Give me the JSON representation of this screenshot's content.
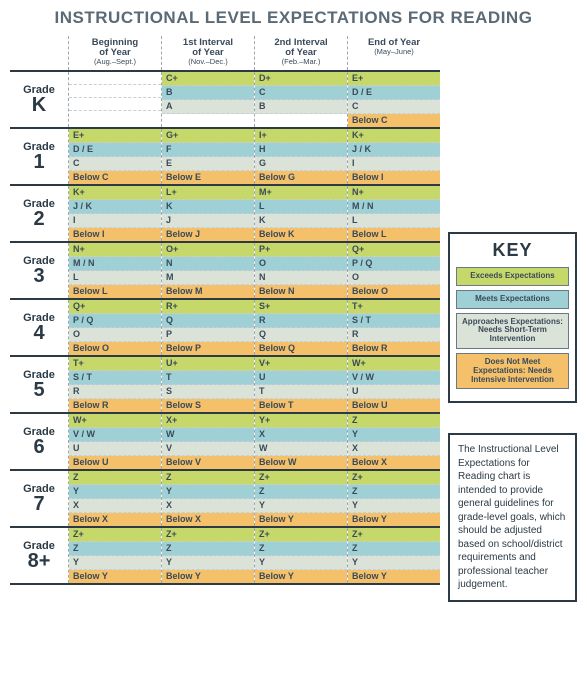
{
  "title": "INSTRUCTIONAL LEVEL EXPECTATIONS FOR READING",
  "colors": {
    "exceeds": "#c7d86a",
    "meets": "#9ed0d6",
    "approaches": "#dbe3d8",
    "notmeet": "#f4c06a",
    "blank": "#ffffff",
    "border": "#2b3a44",
    "dash": "#9aa8b1"
  },
  "intervals": [
    {
      "line1": "Beginning",
      "line2": "of Year",
      "sub": "(Aug.–Sept.)"
    },
    {
      "line1": "1st Interval",
      "line2": "of Year",
      "sub": "(Nov.–Dec.)"
    },
    {
      "line1": "2nd Interval",
      "line2": "of Year",
      "sub": "(Feb.–Mar.)"
    },
    {
      "line1": "End of Year",
      "line2": "",
      "sub": "(May–June)"
    }
  ],
  "levels": [
    "exceeds",
    "meets",
    "approaches",
    "notmeet"
  ],
  "level_css": {
    "exceeds": "c-exceeds",
    "meets": "c-meets",
    "approaches": "c-approach",
    "notmeet": "c-below",
    "blank": "c-blank"
  },
  "grades": [
    {
      "label1": "Grade",
      "label2": "K",
      "cells": [
        [
          {
            "t": "",
            "lvl": "blank"
          },
          {
            "t": "",
            "lvl": "blank"
          },
          {
            "t": "",
            "lvl": "blank"
          },
          {
            "t": "",
            "lvl": "blank"
          }
        ],
        [
          {
            "t": "C+",
            "lvl": "exceeds"
          },
          {
            "t": "B",
            "lvl": "meets"
          },
          {
            "t": "A",
            "lvl": "approaches"
          },
          {
            "t": "",
            "lvl": "blank"
          }
        ],
        [
          {
            "t": "D+",
            "lvl": "exceeds"
          },
          {
            "t": "C",
            "lvl": "meets"
          },
          {
            "t": "B",
            "lvl": "approaches"
          },
          {
            "t": "",
            "lvl": "blank"
          }
        ],
        [
          {
            "t": "E+",
            "lvl": "exceeds"
          },
          {
            "t": "D / E",
            "lvl": "meets"
          },
          {
            "t": "C",
            "lvl": "approaches"
          },
          {
            "t": "Below C",
            "lvl": "notmeet"
          }
        ]
      ]
    },
    {
      "label1": "Grade",
      "label2": "1",
      "cells": [
        [
          {
            "t": "E+",
            "lvl": "exceeds"
          },
          {
            "t": "D / E",
            "lvl": "meets"
          },
          {
            "t": "C",
            "lvl": "approaches"
          },
          {
            "t": "Below C",
            "lvl": "notmeet"
          }
        ],
        [
          {
            "t": "G+",
            "lvl": "exceeds"
          },
          {
            "t": "F",
            "lvl": "meets"
          },
          {
            "t": "E",
            "lvl": "approaches"
          },
          {
            "t": "Below E",
            "lvl": "notmeet"
          }
        ],
        [
          {
            "t": "I+",
            "lvl": "exceeds"
          },
          {
            "t": "H",
            "lvl": "meets"
          },
          {
            "t": "G",
            "lvl": "approaches"
          },
          {
            "t": "Below G",
            "lvl": "notmeet"
          }
        ],
        [
          {
            "t": "K+",
            "lvl": "exceeds"
          },
          {
            "t": "J / K",
            "lvl": "meets"
          },
          {
            "t": "I",
            "lvl": "approaches"
          },
          {
            "t": "Below I",
            "lvl": "notmeet"
          }
        ]
      ]
    },
    {
      "label1": "Grade",
      "label2": "2",
      "cells": [
        [
          {
            "t": "K+",
            "lvl": "exceeds"
          },
          {
            "t": "J / K",
            "lvl": "meets"
          },
          {
            "t": "I",
            "lvl": "approaches"
          },
          {
            "t": "Below I",
            "lvl": "notmeet"
          }
        ],
        [
          {
            "t": "L+",
            "lvl": "exceeds"
          },
          {
            "t": "K",
            "lvl": "meets"
          },
          {
            "t": "J",
            "lvl": "approaches"
          },
          {
            "t": "Below J",
            "lvl": "notmeet"
          }
        ],
        [
          {
            "t": "M+",
            "lvl": "exceeds"
          },
          {
            "t": "L",
            "lvl": "meets"
          },
          {
            "t": "K",
            "lvl": "approaches"
          },
          {
            "t": "Below K",
            "lvl": "notmeet"
          }
        ],
        [
          {
            "t": "N+",
            "lvl": "exceeds"
          },
          {
            "t": "M / N",
            "lvl": "meets"
          },
          {
            "t": "L",
            "lvl": "approaches"
          },
          {
            "t": "Below L",
            "lvl": "notmeet"
          }
        ]
      ]
    },
    {
      "label1": "Grade",
      "label2": "3",
      "cells": [
        [
          {
            "t": "N+",
            "lvl": "exceeds"
          },
          {
            "t": "M / N",
            "lvl": "meets"
          },
          {
            "t": "L",
            "lvl": "approaches"
          },
          {
            "t": "Below L",
            "lvl": "notmeet"
          }
        ],
        [
          {
            "t": "O+",
            "lvl": "exceeds"
          },
          {
            "t": "N",
            "lvl": "meets"
          },
          {
            "t": "M",
            "lvl": "approaches"
          },
          {
            "t": "Below M",
            "lvl": "notmeet"
          }
        ],
        [
          {
            "t": "P+",
            "lvl": "exceeds"
          },
          {
            "t": "O",
            "lvl": "meets"
          },
          {
            "t": "N",
            "lvl": "approaches"
          },
          {
            "t": "Below N",
            "lvl": "notmeet"
          }
        ],
        [
          {
            "t": "Q+",
            "lvl": "exceeds"
          },
          {
            "t": "P / Q",
            "lvl": "meets"
          },
          {
            "t": "O",
            "lvl": "approaches"
          },
          {
            "t": "Below O",
            "lvl": "notmeet"
          }
        ]
      ]
    },
    {
      "label1": "Grade",
      "label2": "4",
      "cells": [
        [
          {
            "t": "Q+",
            "lvl": "exceeds"
          },
          {
            "t": "P / Q",
            "lvl": "meets"
          },
          {
            "t": "O",
            "lvl": "approaches"
          },
          {
            "t": "Below O",
            "lvl": "notmeet"
          }
        ],
        [
          {
            "t": "R+",
            "lvl": "exceeds"
          },
          {
            "t": "Q",
            "lvl": "meets"
          },
          {
            "t": "P",
            "lvl": "approaches"
          },
          {
            "t": "Below P",
            "lvl": "notmeet"
          }
        ],
        [
          {
            "t": "S+",
            "lvl": "exceeds"
          },
          {
            "t": "R",
            "lvl": "meets"
          },
          {
            "t": "Q",
            "lvl": "approaches"
          },
          {
            "t": "Below Q",
            "lvl": "notmeet"
          }
        ],
        [
          {
            "t": "T+",
            "lvl": "exceeds"
          },
          {
            "t": "S / T",
            "lvl": "meets"
          },
          {
            "t": "R",
            "lvl": "approaches"
          },
          {
            "t": "Below R",
            "lvl": "notmeet"
          }
        ]
      ]
    },
    {
      "label1": "Grade",
      "label2": "5",
      "cells": [
        [
          {
            "t": "T+",
            "lvl": "exceeds"
          },
          {
            "t": "S / T",
            "lvl": "meets"
          },
          {
            "t": "R",
            "lvl": "approaches"
          },
          {
            "t": "Below R",
            "lvl": "notmeet"
          }
        ],
        [
          {
            "t": "U+",
            "lvl": "exceeds"
          },
          {
            "t": "T",
            "lvl": "meets"
          },
          {
            "t": "S",
            "lvl": "approaches"
          },
          {
            "t": "Below S",
            "lvl": "notmeet"
          }
        ],
        [
          {
            "t": "V+",
            "lvl": "exceeds"
          },
          {
            "t": "U",
            "lvl": "meets"
          },
          {
            "t": "T",
            "lvl": "approaches"
          },
          {
            "t": "Below T",
            "lvl": "notmeet"
          }
        ],
        [
          {
            "t": "W+",
            "lvl": "exceeds"
          },
          {
            "t": "V / W",
            "lvl": "meets"
          },
          {
            "t": "U",
            "lvl": "approaches"
          },
          {
            "t": "Below U",
            "lvl": "notmeet"
          }
        ]
      ]
    },
    {
      "label1": "Grade",
      "label2": "6",
      "cells": [
        [
          {
            "t": "W+",
            "lvl": "exceeds"
          },
          {
            "t": "V / W",
            "lvl": "meets"
          },
          {
            "t": "U",
            "lvl": "approaches"
          },
          {
            "t": "Below U",
            "lvl": "notmeet"
          }
        ],
        [
          {
            "t": "X+",
            "lvl": "exceeds"
          },
          {
            "t": "W",
            "lvl": "meets"
          },
          {
            "t": "V",
            "lvl": "approaches"
          },
          {
            "t": "Below V",
            "lvl": "notmeet"
          }
        ],
        [
          {
            "t": "Y+",
            "lvl": "exceeds"
          },
          {
            "t": "X",
            "lvl": "meets"
          },
          {
            "t": "W",
            "lvl": "approaches"
          },
          {
            "t": "Below W",
            "lvl": "notmeet"
          }
        ],
        [
          {
            "t": "Z",
            "lvl": "exceeds"
          },
          {
            "t": "Y",
            "lvl": "meets"
          },
          {
            "t": "X",
            "lvl": "approaches"
          },
          {
            "t": "Below X",
            "lvl": "notmeet"
          }
        ]
      ]
    },
    {
      "label1": "Grade",
      "label2": "7",
      "cells": [
        [
          {
            "t": "Z",
            "lvl": "exceeds"
          },
          {
            "t": "Y",
            "lvl": "meets"
          },
          {
            "t": "X",
            "lvl": "approaches"
          },
          {
            "t": "Below X",
            "lvl": "notmeet"
          }
        ],
        [
          {
            "t": "Z",
            "lvl": "exceeds"
          },
          {
            "t": "Y",
            "lvl": "meets"
          },
          {
            "t": "X",
            "lvl": "approaches"
          },
          {
            "t": "Below X",
            "lvl": "notmeet"
          }
        ],
        [
          {
            "t": "Z+",
            "lvl": "exceeds"
          },
          {
            "t": "Z",
            "lvl": "meets"
          },
          {
            "t": "Y",
            "lvl": "approaches"
          },
          {
            "t": "Below Y",
            "lvl": "notmeet"
          }
        ],
        [
          {
            "t": "Z+",
            "lvl": "exceeds"
          },
          {
            "t": "Z",
            "lvl": "meets"
          },
          {
            "t": "Y",
            "lvl": "approaches"
          },
          {
            "t": "Below Y",
            "lvl": "notmeet"
          }
        ]
      ]
    },
    {
      "label1": "Grade",
      "label2": "8+",
      "cells": [
        [
          {
            "t": "Z+",
            "lvl": "exceeds"
          },
          {
            "t": "Z",
            "lvl": "meets"
          },
          {
            "t": "Y",
            "lvl": "approaches"
          },
          {
            "t": "Below Y",
            "lvl": "notmeet"
          }
        ],
        [
          {
            "t": "Z+",
            "lvl": "exceeds"
          },
          {
            "t": "Z",
            "lvl": "meets"
          },
          {
            "t": "Y",
            "lvl": "approaches"
          },
          {
            "t": "Below Y",
            "lvl": "notmeet"
          }
        ],
        [
          {
            "t": "Z+",
            "lvl": "exceeds"
          },
          {
            "t": "Z",
            "lvl": "meets"
          },
          {
            "t": "Y",
            "lvl": "approaches"
          },
          {
            "t": "Below Y",
            "lvl": "notmeet"
          }
        ],
        [
          {
            "t": "Z+",
            "lvl": "exceeds"
          },
          {
            "t": "Z",
            "lvl": "meets"
          },
          {
            "t": "Y",
            "lvl": "approaches"
          },
          {
            "t": "Below Y",
            "lvl": "notmeet"
          }
        ]
      ]
    }
  ],
  "key": {
    "title": "KEY",
    "items": [
      {
        "text": "Exceeds Expectations",
        "lvl": "exceeds"
      },
      {
        "text": "Meets Expectations",
        "lvl": "meets"
      },
      {
        "text": "Approaches Expectations: Needs Short-Term Intervention",
        "lvl": "approaches"
      },
      {
        "text": "Does Not Meet Expectations: Needs Intensive Intervention",
        "lvl": "notmeet"
      }
    ]
  },
  "note": "The Instructional Level Expectations for Reading chart is intended to provide general guidelines for grade-level goals, which should be adjusted based on school/district requirements and professional teacher judgement."
}
